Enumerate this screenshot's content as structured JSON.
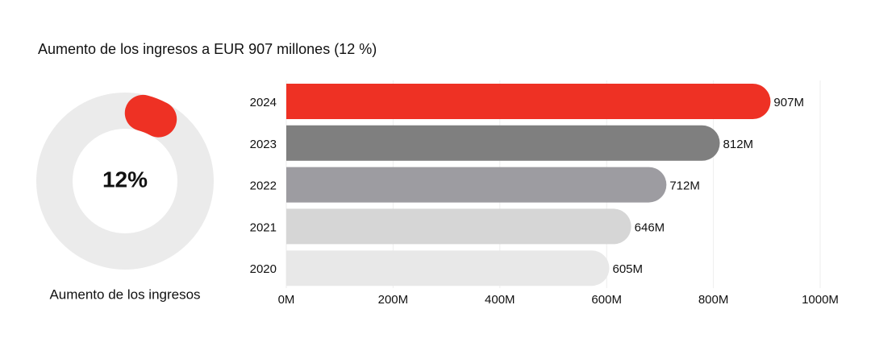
{
  "title": "Aumento de los ingresos a EUR 907 millones (12 %)",
  "chart_data": [
    {
      "type": "donut",
      "label": "Aumento de los ingresos",
      "values": [
        12
      ],
      "value_labels": [
        "12%"
      ],
      "color": "#ee3124",
      "track_color": "#ebebeb"
    },
    {
      "type": "hbar",
      "categories": [
        "2024",
        "2023",
        "2022",
        "2021",
        "2020"
      ],
      "values": [
        907,
        812,
        712,
        646,
        605
      ],
      "value_labels": [
        "907M",
        "812M",
        "712M",
        "646M",
        "605M"
      ],
      "colors": [
        "#ee3124",
        "#7f7f7f",
        "#9d9ca1",
        "#d6d6d6",
        "#e8e8e8"
      ],
      "xlim": [
        0,
        1000
      ],
      "xticks": [
        {
          "value": 0,
          "label": "0M"
        },
        {
          "value": 200,
          "label": "200M"
        },
        {
          "value": 400,
          "label": "400M"
        },
        {
          "value": 600,
          "label": "600M"
        },
        {
          "value": 800,
          "label": "800M"
        },
        {
          "value": 1000,
          "label": "1000M"
        }
      ],
      "grid": true
    }
  ]
}
